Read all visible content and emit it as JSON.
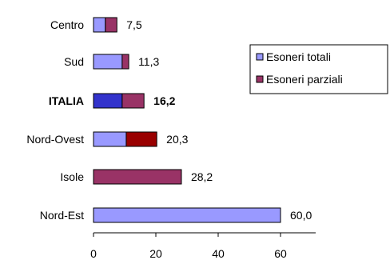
{
  "chart_data": {
    "type": "bar",
    "orientation": "horizontal",
    "stacked": true,
    "title": "",
    "xlabel": "",
    "ylabel": "",
    "xlim": [
      0,
      70
    ],
    "xticks": [
      0,
      20,
      40,
      60
    ],
    "grid": false,
    "legend_position": "right",
    "categories": [
      "Centro",
      "Sud",
      "ITALIA",
      "Nord-Ovest",
      "Isole",
      "Nord-Est"
    ],
    "highlight_category": "ITALIA",
    "totals": [
      7.5,
      11.3,
      16.2,
      20.3,
      28.2,
      60.0
    ],
    "total_labels": [
      "7,5",
      "11,3",
      "16,2",
      "20,3",
      "28,2",
      "60,0"
    ],
    "tick_labels": [
      "0",
      "20",
      "40",
      "60"
    ],
    "series": [
      {
        "name": "Esoneri totali",
        "values": [
          3.8,
          9.2,
          9.2,
          10.5,
          0,
          60.0
        ],
        "color": "#9999ff",
        "highlight_color": "#3333cc"
      },
      {
        "name": "Esoneri parziali",
        "values": [
          3.7,
          2.1,
          7.0,
          9.8,
          28.2,
          0
        ],
        "color": "#993366",
        "highlight_color": "#993366",
        "alt_colors": {
          "Nord-Ovest": "#990000"
        }
      }
    ]
  }
}
